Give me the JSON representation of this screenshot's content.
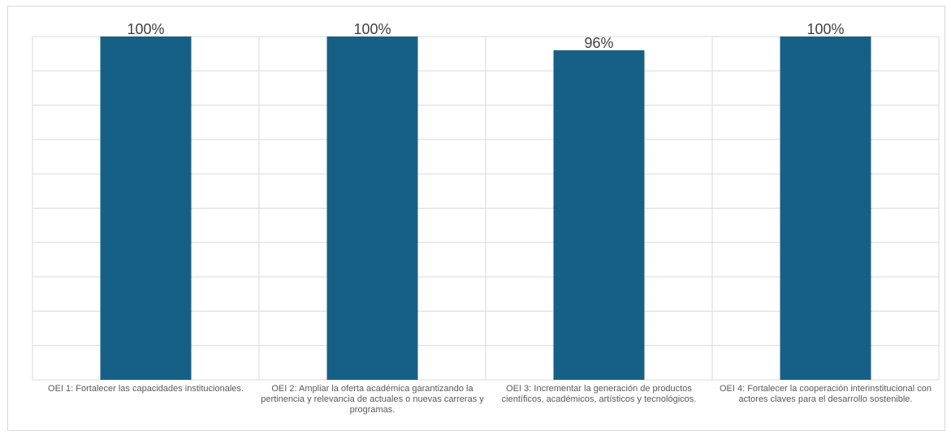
{
  "chart_data": {
    "type": "bar",
    "categories": [
      "OEI 1: Fortalecer las capacidades institucionales.",
      "OEI 2: Ampliar la oferta académica garantizando la pertinencia y relevancia de actuales o nuevas carreras y programas.",
      "OEI 3: Incrementar la generación de productos científicos, académicos, artísticos y tecnológicos.",
      "OEI 4: Fortalecer la cooperación interinstitucional con actores claves para el desarrollo sostenible."
    ],
    "values": [
      100,
      100,
      96,
      100
    ],
    "data_labels": [
      "100%",
      "100%",
      "96%",
      "100%"
    ],
    "title": "",
    "xlabel": "",
    "ylabel": "",
    "ylim": [
      0,
      100
    ],
    "grid": true,
    "legend": "none",
    "colors": {
      "bar": "#176085",
      "grid": "#d9d9d9"
    }
  }
}
